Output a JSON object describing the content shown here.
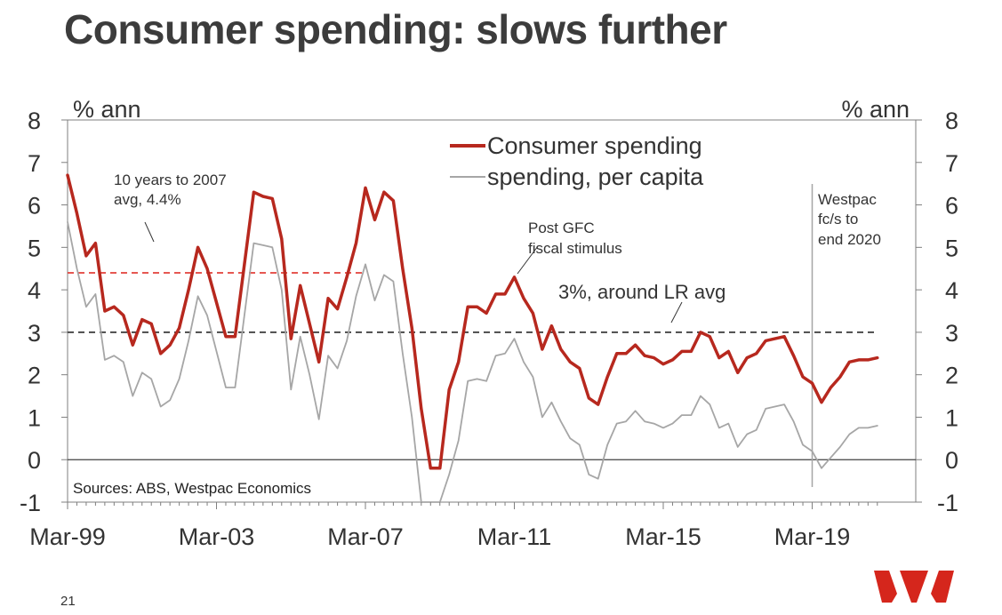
{
  "slide": {
    "title": "Consumer spending: slows further",
    "page_number": "21"
  },
  "chart_data": {
    "type": "line",
    "y_unit_left": "% ann",
    "y_unit_right": "% ann",
    "ylim": [
      -1,
      8
    ],
    "yticks": [
      -1,
      0,
      1,
      2,
      3,
      4,
      5,
      6,
      7,
      8
    ],
    "xlabels": [
      "Mar-99",
      "Mar-03",
      "Mar-07",
      "Mar-11",
      "Mar-15",
      "Mar-19"
    ],
    "x_start": "Mar-99",
    "x_end": "Dec-20",
    "grid": false,
    "legend_placement": "top-center",
    "series": [
      {
        "name": "Consumer spending",
        "color": "#b7281e",
        "values": [
          6.7,
          5.8,
          4.8,
          5.1,
          3.5,
          3.6,
          3.4,
          2.7,
          3.3,
          3.2,
          2.5,
          2.7,
          3.1,
          4.0,
          5.0,
          4.5,
          3.7,
          2.9,
          2.9,
          4.6,
          6.3,
          6.2,
          6.15,
          5.2,
          2.85,
          4.1,
          3.2,
          2.3,
          3.8,
          3.55,
          4.3,
          5.1,
          6.4,
          5.65,
          6.3,
          6.1,
          4.5,
          3.1,
          1.2,
          -0.2,
          -0.2,
          1.65,
          2.3,
          3.6,
          3.6,
          3.45,
          3.9,
          3.9,
          4.3,
          3.8,
          3.45,
          2.6,
          3.15,
          2.6,
          2.3,
          2.15,
          1.45,
          1.3,
          1.95,
          2.5,
          2.5,
          2.7,
          2.45,
          2.4,
          2.25,
          2.35,
          2.55,
          2.55,
          3.0,
          2.9,
          2.4,
          2.55,
          2.05,
          2.4,
          2.5,
          2.8,
          2.85,
          2.9,
          2.45,
          1.95,
          1.8,
          1.35,
          1.7,
          1.95,
          2.3,
          2.35,
          2.35,
          2.4
        ]
      },
      {
        "name": "spending, per capita",
        "color": "#a6a6a6",
        "values": [
          5.6,
          4.5,
          3.6,
          3.9,
          2.35,
          2.45,
          2.3,
          1.5,
          2.05,
          1.9,
          1.25,
          1.4,
          1.9,
          2.8,
          3.85,
          3.4,
          2.55,
          1.7,
          1.7,
          3.4,
          5.1,
          5.05,
          5.0,
          4.0,
          1.65,
          2.9,
          2.0,
          0.95,
          2.45,
          2.15,
          2.8,
          3.85,
          4.6,
          3.75,
          4.35,
          4.2,
          2.5,
          1.0,
          -1.3,
          -2.3,
          -2.3,
          -0.35,
          0.45,
          1.85,
          1.9,
          1.85,
          2.45,
          2.5,
          2.85,
          2.3,
          1.95,
          1.0,
          1.35,
          0.9,
          0.5,
          0.35,
          -0.35,
          -0.45,
          0.35,
          0.85,
          0.9,
          1.15,
          0.9,
          0.85,
          0.75,
          0.85,
          1.05,
          1.05,
          1.5,
          1.3,
          0.75,
          0.85,
          0.3,
          0.6,
          0.7,
          1.2,
          1.25,
          1.3,
          0.9,
          0.35,
          0.2,
          -0.2,
          0.05,
          0.3,
          0.6,
          0.75,
          0.75,
          0.8
        ]
      }
    ],
    "reference_lines": [
      {
        "value": 4.4,
        "color": "#e2413a",
        "style": "dashed",
        "span": "Mar-99 to Mar-07"
      },
      {
        "value": 3.0,
        "color": "#3a3a3a",
        "style": "dashed",
        "span": "Mar-99 to Dec-20"
      }
    ],
    "forecast_marker": "Mar-19",
    "annotations": [
      {
        "text": [
          "10 years to 2007",
          "avg, 4.4%"
        ]
      },
      {
        "text": [
          "Post GFC",
          "fiscal stimulus"
        ]
      },
      {
        "text": [
          "3%, around LR avg"
        ]
      },
      {
        "text": [
          "Westpac",
          "fc/s to",
          "end 2020"
        ]
      }
    ],
    "source": "Sources: ABS, Westpac Economics"
  },
  "logo": {
    "name": "westpac-logo",
    "color": "#d5261c"
  }
}
